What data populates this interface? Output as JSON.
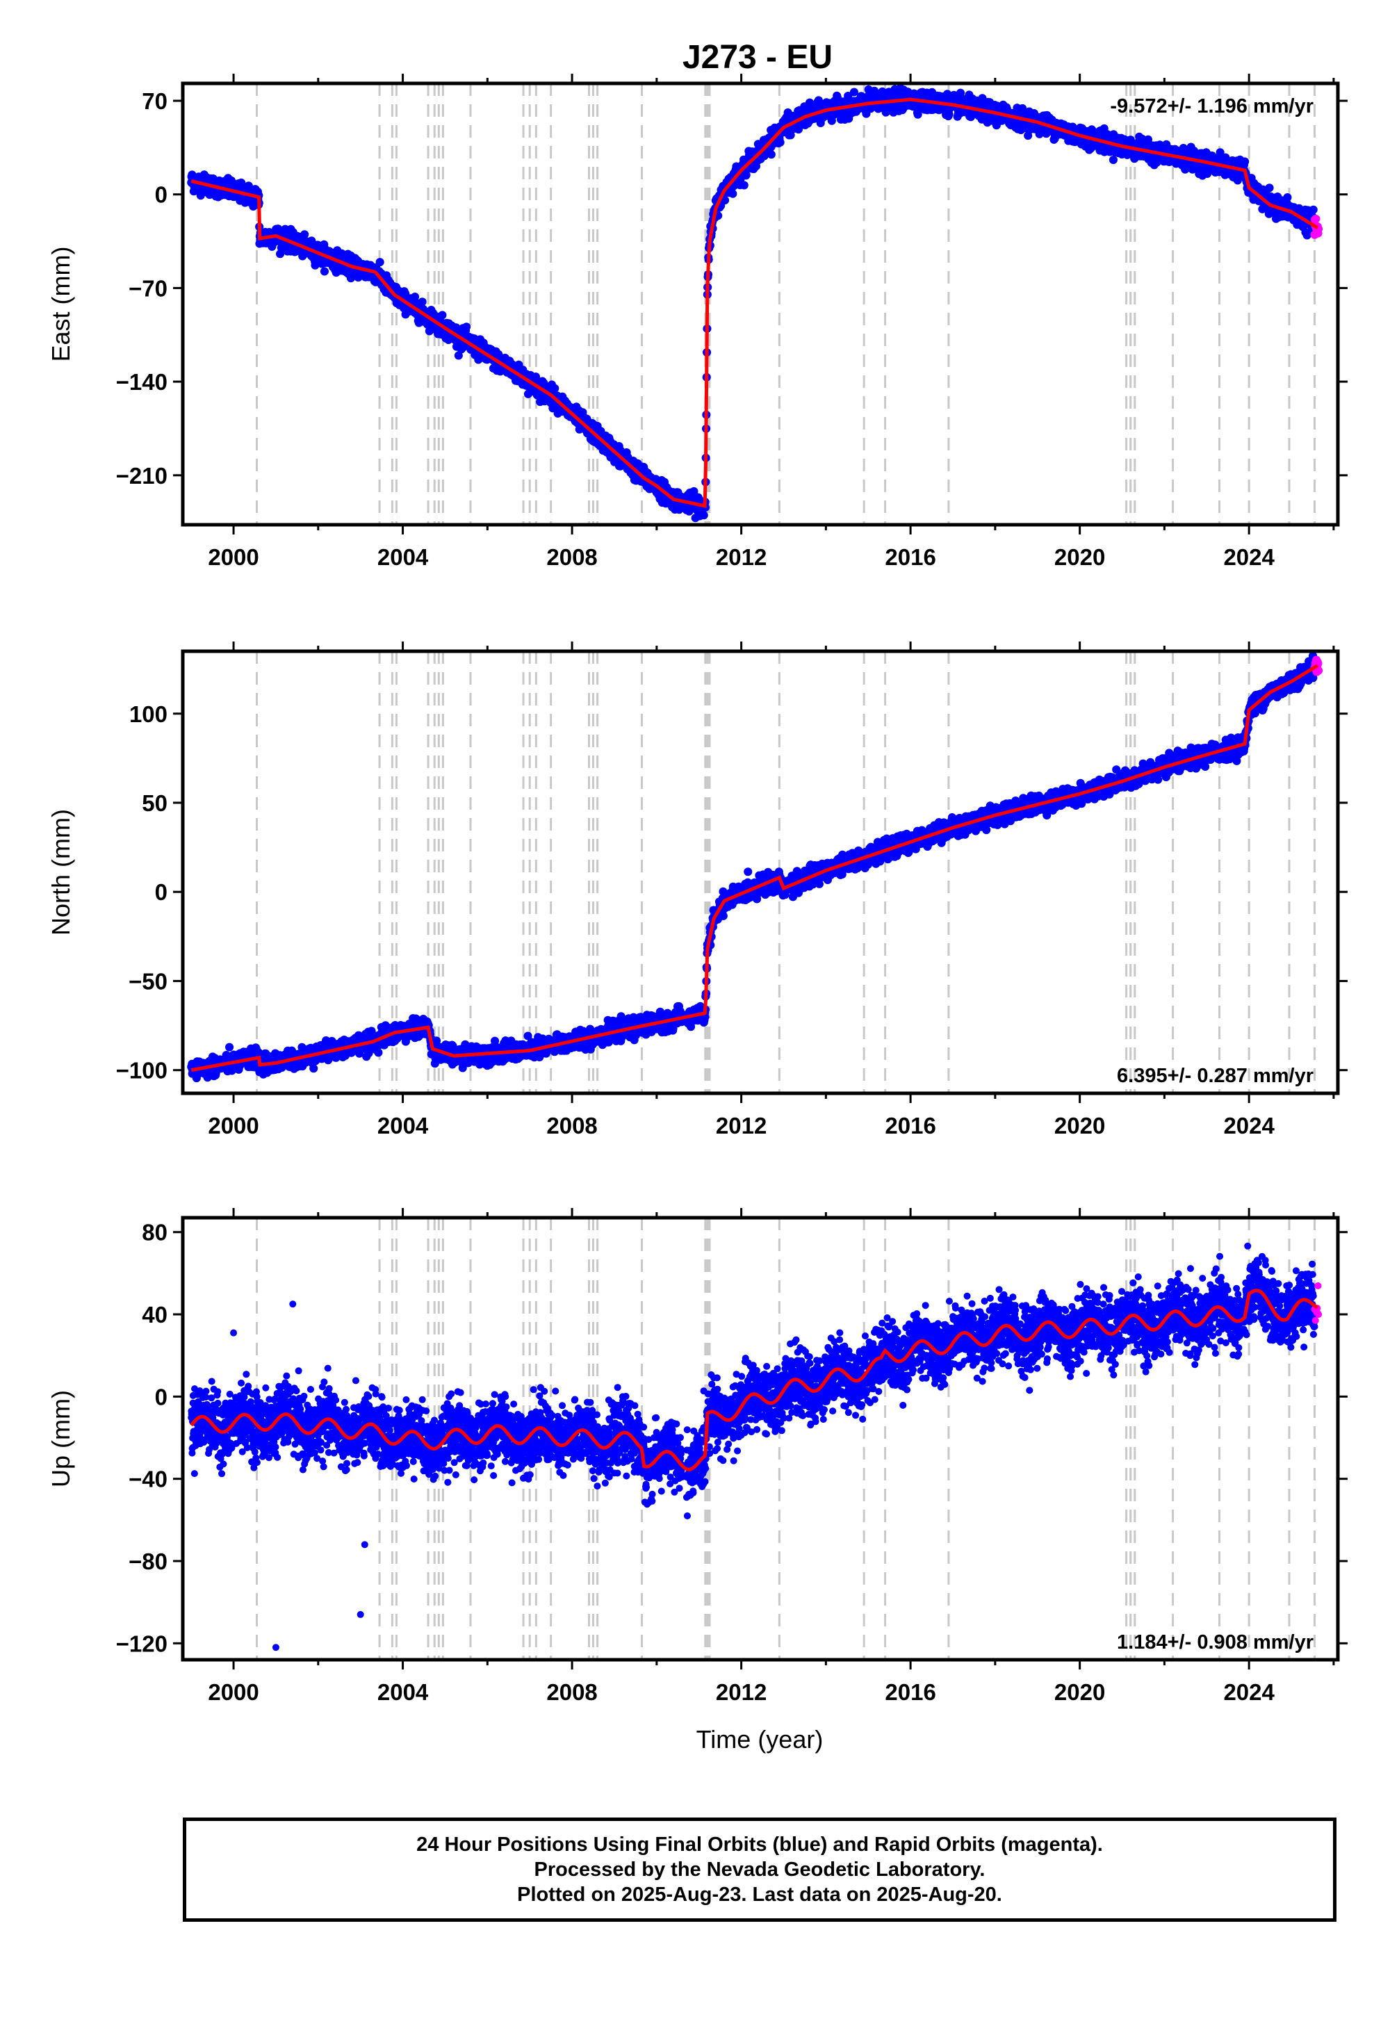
{
  "title": "J273 - EU",
  "xlabel": "Time (year)",
  "x_ticks": [
    "2000",
    "2004",
    "2008",
    "2012",
    "2016",
    "2020",
    "2024"
  ],
  "colors": {
    "final_orbits": "#0000ff",
    "rapid_orbits": "#ff00ff",
    "model": "#ff0000",
    "event_lines": "#c8c8c8"
  },
  "footer": {
    "line1": "24 Hour Positions Using Final Orbits (blue) and Rapid Orbits (magenta).",
    "line2": "Processed by the Nevada Geodetic Laboratory.",
    "line3": "Plotted on 2025-Aug-23. Last data on 2025-Aug-20."
  },
  "chart_data": [
    {
      "type": "scatter",
      "panel": "east",
      "ylabel": "East (mm)",
      "rate_text": "-9.572+/- 1.196 mm/yr",
      "rate_position": "top-right",
      "xlim": [
        1998.8,
        2026.1
      ],
      "ylim": [
        -247,
        83
      ],
      "y_ticks": [
        "70",
        "0",
        "−70",
        "−140",
        "−210"
      ],
      "y_tick_values": [
        70,
        0,
        -70,
        -140,
        -210
      ],
      "model_knots": [
        [
          1999.0,
          10
        ],
        [
          2000.6,
          -2
        ],
        [
          2000.61,
          -33
        ],
        [
          2001.0,
          -31
        ],
        [
          2002.8,
          -54
        ],
        [
          2003.35,
          -58
        ],
        [
          2003.8,
          -75
        ],
        [
          2005.0,
          -100
        ],
        [
          2007.5,
          -150
        ],
        [
          2009.7,
          -212
        ],
        [
          2010.0,
          -218
        ],
        [
          2010.4,
          -228
        ],
        [
          2011.15,
          -233
        ],
        [
          2011.2,
          -68
        ],
        [
          2011.25,
          -35
        ],
        [
          2011.4,
          -10
        ],
        [
          2011.6,
          3
        ],
        [
          2012.0,
          18
        ],
        [
          2012.5,
          33
        ],
        [
          2013.0,
          50
        ],
        [
          2013.5,
          58
        ],
        [
          2014.0,
          63
        ],
        [
          2015.0,
          68
        ],
        [
          2016.0,
          71
        ],
        [
          2017.0,
          67
        ],
        [
          2018.0,
          61
        ],
        [
          2019.0,
          54
        ],
        [
          2020.0,
          44
        ],
        [
          2021.0,
          36
        ],
        [
          2022.0,
          30
        ],
        [
          2023.0,
          24
        ],
        [
          2023.9,
          18
        ],
        [
          2024.0,
          5
        ],
        [
          2024.5,
          -8
        ],
        [
          2025.0,
          -13
        ],
        [
          2025.62,
          -25
        ]
      ],
      "series": [
        {
          "name": "Final Orbits",
          "color": "#0000ff",
          "x_range": [
            1999.0,
            2025.55
          ],
          "noise_mm": 3.5
        },
        {
          "name": "Rapid Orbits",
          "color": "#ff00ff",
          "x_range": [
            2025.55,
            2025.64
          ],
          "noise_mm": 3.0
        },
        {
          "name": "Model",
          "color": "#ff0000"
        }
      ]
    },
    {
      "type": "scatter",
      "panel": "north",
      "ylabel": "North (mm)",
      "rate_text": "6.395+/- 0.287 mm/yr",
      "rate_position": "bottom-right",
      "xlim": [
        1998.8,
        2026.1
      ],
      "ylim": [
        -113,
        135
      ],
      "y_ticks": [
        "100",
        "50",
        "0",
        "−50",
        "−100"
      ],
      "y_tick_values": [
        100,
        50,
        0,
        -50,
        -100
      ],
      "model_knots": [
        [
          1999.0,
          -100
        ],
        [
          2000.6,
          -93
        ],
        [
          2000.61,
          -97
        ],
        [
          2001.0,
          -96
        ],
        [
          2003.3,
          -84
        ],
        [
          2003.8,
          -79
        ],
        [
          2004.6,
          -76
        ],
        [
          2004.7,
          -88
        ],
        [
          2005.2,
          -92
        ],
        [
          2007.0,
          -89
        ],
        [
          2009.5,
          -76
        ],
        [
          2011.15,
          -68
        ],
        [
          2011.2,
          -32
        ],
        [
          2011.35,
          -15
        ],
        [
          2011.6,
          -5
        ],
        [
          2012.9,
          8
        ],
        [
          2013.0,
          2
        ],
        [
          2014.0,
          12
        ],
        [
          2015.0,
          20
        ],
        [
          2016.0,
          28
        ],
        [
          2017.0,
          36
        ],
        [
          2018.0,
          43
        ],
        [
          2019.0,
          49
        ],
        [
          2020.0,
          55
        ],
        [
          2021.0,
          62
        ],
        [
          2022.0,
          70
        ],
        [
          2023.0,
          77
        ],
        [
          2023.9,
          83
        ],
        [
          2024.0,
          102
        ],
        [
          2024.5,
          112
        ],
        [
          2025.0,
          118
        ],
        [
          2025.62,
          127
        ]
      ],
      "series": [
        {
          "name": "Final Orbits",
          "color": "#0000ff",
          "x_range": [
            1999.0,
            2025.55
          ],
          "noise_mm": 2.5
        },
        {
          "name": "Rapid Orbits",
          "color": "#ff00ff",
          "x_range": [
            2025.55,
            2025.64
          ],
          "noise_mm": 2.0
        },
        {
          "name": "Model",
          "color": "#ff0000"
        }
      ]
    },
    {
      "type": "scatter",
      "panel": "up",
      "ylabel": "Up (mm)",
      "rate_text": "1.184+/- 0.908 mm/yr",
      "rate_position": "bottom-right",
      "xlim": [
        1998.8,
        2026.1
      ],
      "ylim": [
        -128,
        87
      ],
      "y_ticks": [
        "80",
        "40",
        "0",
        "−40",
        "−80",
        "−120"
      ],
      "y_tick_values": [
        80,
        40,
        0,
        -40,
        -80,
        -120
      ],
      "model_knots": [
        [
          1999.0,
          -14
        ],
        [
          2001.0,
          -12
        ],
        [
          2003.5,
          -18
        ],
        [
          2004.5,
          -22
        ],
        [
          2006.0,
          -18
        ],
        [
          2008.0,
          -20
        ],
        [
          2009.65,
          -22
        ],
        [
          2009.7,
          -30
        ],
        [
          2011.15,
          -32
        ],
        [
          2011.2,
          -12
        ],
        [
          2012.0,
          -5
        ],
        [
          2013.0,
          3
        ],
        [
          2014.0,
          8
        ],
        [
          2015.0,
          13
        ],
        [
          2015.3,
          15
        ],
        [
          2015.4,
          20
        ],
        [
          2016.0,
          22
        ],
        [
          2017.0,
          26
        ],
        [
          2018.0,
          30
        ],
        [
          2019.0,
          32
        ],
        [
          2020.0,
          33
        ],
        [
          2021.0,
          35
        ],
        [
          2022.0,
          37
        ],
        [
          2023.0,
          39
        ],
        [
          2023.9,
          41
        ],
        [
          2024.0,
          50
        ],
        [
          2024.9,
          40
        ],
        [
          2025.62,
          46
        ]
      ],
      "seasonal_amplitude_mm": 4,
      "outliers": [
        [
          2001.0,
          -122
        ],
        [
          2003.0,
          -106
        ],
        [
          2003.1,
          -72
        ],
        [
          2000.0,
          31
        ],
        [
          2001.4,
          45
        ]
      ],
      "series": [
        {
          "name": "Final Orbits",
          "color": "#0000ff",
          "x_range": [
            1999.0,
            2025.55
          ],
          "noise_mm": 7.5
        },
        {
          "name": "Rapid Orbits",
          "color": "#ff00ff",
          "x_range": [
            2025.55,
            2025.64
          ],
          "noise_mm": 5.0
        },
        {
          "name": "Model",
          "color": "#ff0000"
        }
      ]
    }
  ],
  "event_lines": [
    2000.55,
    2003.45,
    2003.75,
    2003.85,
    2004.6,
    2004.75,
    2004.85,
    2004.95,
    2005.6,
    2006.85,
    2007.0,
    2007.15,
    2007.5,
    2008.4,
    2008.5,
    2008.6,
    2009.65,
    2011.15,
    2011.2,
    2011.25,
    2012.9,
    2014.9,
    2015.4,
    2016.9,
    2021.1,
    2021.2,
    2021.3,
    2022.2,
    2023.3,
    2024.0,
    2024.95,
    2025.55
  ]
}
